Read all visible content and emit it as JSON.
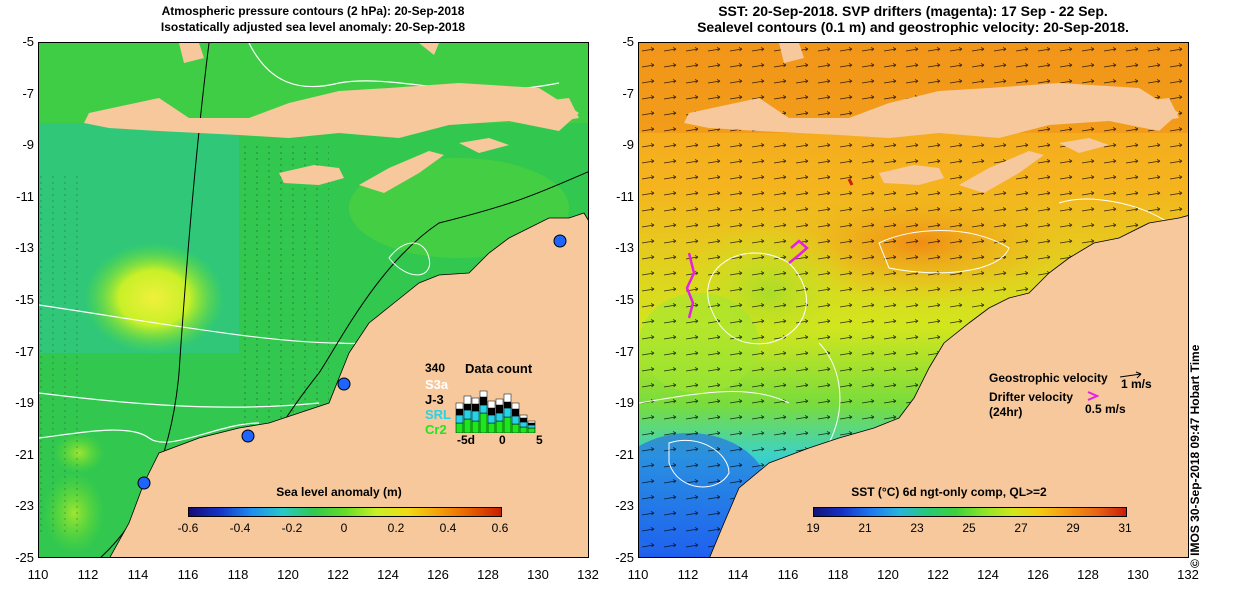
{
  "left_panel": {
    "title_line1": "Atmospheric pressure contours (2 hPa): 20-Sep-2018",
    "title_line2": "Isostatically adjusted sea level anomaly: 20-Sep-2018",
    "colorbar_title": "Sea level anomaly (m)",
    "colorbar_labels": [
      "-0.6",
      "-0.4",
      "-0.2",
      "0",
      "0.2",
      "0.4",
      "0.6"
    ],
    "colorbar_colors": [
      "#140a78",
      "#1434c8",
      "#1e8cf0",
      "#28c8c8",
      "#32c850",
      "#64dc28",
      "#c8f028",
      "#f0dc14",
      "#f5a00a",
      "#e86000",
      "#c81e00"
    ],
    "data_count": {
      "title": "Data count",
      "max_label": "340",
      "missions": [
        {
          "name": "S3a",
          "color": "#ffffff"
        },
        {
          "name": "J-3",
          "color": "#000000"
        },
        {
          "name": "SRL",
          "color": "#28d2e6"
        },
        {
          "name": "Cr2",
          "color": "#1ee61e"
        }
      ],
      "axis_labels": [
        "-5d",
        "0",
        "5"
      ]
    }
  },
  "right_panel": {
    "title_line1": "SST: 20-Sep-2018. SVP drifters (magenta): 17 Sep - 22 Sep.",
    "title_line2": "Sealevel contours (0.1 m) and geostrophic velocity: 20-Sep-2018.",
    "colorbar_title": "SST (°C) 6d ngt-only comp, QL>=2",
    "colorbar_labels": [
      "19",
      "21",
      "23",
      "25",
      "27",
      "29",
      "31"
    ],
    "colorbar_colors": [
      "#14147a",
      "#1432c8",
      "#1e78f0",
      "#28b4dc",
      "#28c878",
      "#3cd23c",
      "#8ce628",
      "#d2e61e",
      "#f5c814",
      "#f59614",
      "#e66414",
      "#c81e0a"
    ],
    "legend": {
      "geo_label": "Geostrophic velocity",
      "geo_scale": "1 m/s",
      "drifter_label": "Drifter velocity",
      "drifter_sub": "(24hr)",
      "drifter_scale": "0.5 m/s"
    }
  },
  "axes": {
    "y_ticks": [
      "-5",
      "-7",
      "-9",
      "-11",
      "-13",
      "-15",
      "-17",
      "-19",
      "-21",
      "-23",
      "-25"
    ],
    "x_ticks": [
      "110",
      "112",
      "114",
      "116",
      "118",
      "120",
      "122",
      "124",
      "126",
      "128",
      "130",
      "132"
    ]
  },
  "credit": "© IMOS 30-Sep-2018 09:47 Hobart Time",
  "colors": {
    "land": "#f7c89b",
    "sea_left": "#32c850",
    "sea_right": "#f5b41e",
    "drifter": "#e61ee6",
    "station": "#1464ff"
  }
}
